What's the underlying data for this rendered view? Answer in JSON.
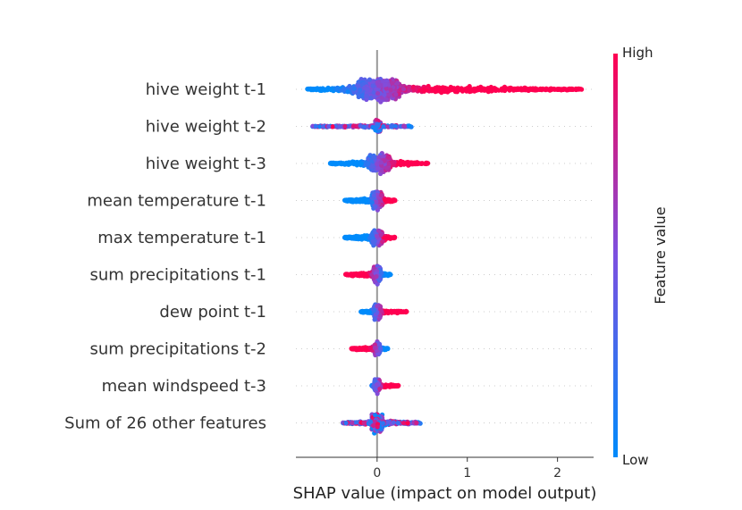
{
  "chart_data": {
    "type": "scatter",
    "subtype": "shap-beeswarm",
    "xlabel": "SHAP value (impact on model output)",
    "xlim": [
      -0.9,
      2.4
    ],
    "xticks": [
      0,
      1,
      2
    ],
    "colorbar": {
      "title": "Feature value",
      "high_label": "High",
      "low_label": "Low",
      "low_color": "#008bfb",
      "high_color": "#ff0051"
    },
    "features": [
      {
        "name": "hive weight t-1",
        "min": -0.78,
        "max": 2.28,
        "core": [
          -0.22,
          0.25
        ],
        "core_halfwidth": 16,
        "low_side": "left",
        "tail_density": 1.0,
        "points": 1400
      },
      {
        "name": "hive weight t-2",
        "min": -0.72,
        "max": 0.38,
        "core": [
          -0.02,
          0.04
        ],
        "core_halfwidth": 9,
        "low_side": "mixed",
        "tail_density": 0.4,
        "points": 450
      },
      {
        "name": "hive weight t-3",
        "min": -0.52,
        "max": 0.57,
        "core": [
          -0.1,
          0.15
        ],
        "core_halfwidth": 13,
        "low_side": "left",
        "tail_density": 0.7,
        "points": 800
      },
      {
        "name": "mean temperature t-1",
        "min": -0.36,
        "max": 0.2,
        "core": [
          -0.06,
          0.06
        ],
        "core_halfwidth": 12,
        "low_side": "left",
        "tail_density": 0.8,
        "points": 650
      },
      {
        "name": "max temperature t-1",
        "min": -0.36,
        "max": 0.2,
        "core": [
          -0.06,
          0.06
        ],
        "core_halfwidth": 12,
        "low_side": "left",
        "tail_density": 0.8,
        "points": 650
      },
      {
        "name": "sum precipitations t-1",
        "min": -0.35,
        "max": 0.15,
        "core": [
          -0.04,
          0.04
        ],
        "core_halfwidth": 12,
        "low_side": "right",
        "tail_density": 0.8,
        "points": 600
      },
      {
        "name": "dew point t-1",
        "min": -0.18,
        "max": 0.33,
        "core": [
          -0.04,
          0.04
        ],
        "core_halfwidth": 12,
        "low_side": "left",
        "tail_density": 0.5,
        "points": 500
      },
      {
        "name": "sum precipitations t-2",
        "min": -0.29,
        "max": 0.12,
        "core": [
          -0.03,
          0.03
        ],
        "core_halfwidth": 10,
        "low_side": "right",
        "tail_density": 0.7,
        "points": 450
      },
      {
        "name": "mean windspeed t-3",
        "min": -0.06,
        "max": 0.24,
        "core": [
          -0.03,
          0.03
        ],
        "core_halfwidth": 10,
        "low_side": "left",
        "tail_density": 0.6,
        "points": 400
      },
      {
        "name": "Sum of 26 other features",
        "min": -0.38,
        "max": 0.48,
        "core": [
          -0.06,
          0.06
        ],
        "core_halfwidth": 14,
        "low_side": "mixed",
        "tail_density": 0.5,
        "points": 750
      }
    ]
  }
}
